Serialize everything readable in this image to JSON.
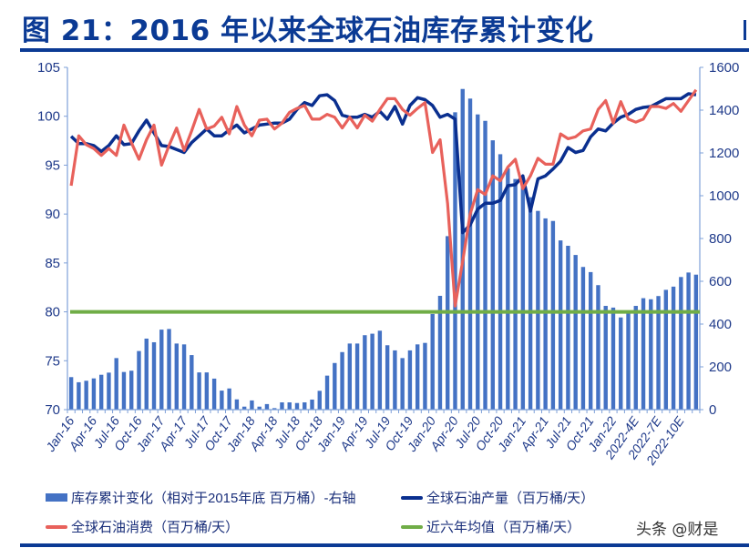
{
  "title": "图 21：2016 年以来全球石油库存累计变化",
  "watermark": "头条 @财是",
  "colors": {
    "bars": "#4472c4",
    "production": "#0a2f8f",
    "consumption": "#e8615b",
    "average": "#70ad47",
    "accent": "#0b3a94"
  },
  "chart_data": {
    "type": "bar+line",
    "title": "图 21：2016 年以来全球石油库存累计变化",
    "left_axis": {
      "ylim": [
        70,
        105
      ],
      "ticks": [
        70,
        75,
        80,
        85,
        90,
        95,
        100,
        105
      ]
    },
    "right_axis": {
      "ylim": [
        0,
        1600
      ],
      "ticks": [
        0,
        200,
        400,
        600,
        800,
        1000,
        1200,
        1400,
        1600
      ]
    },
    "x_tick_labels": [
      "Jan-16",
      "Apr-16",
      "Jul-16",
      "Oct-16",
      "Jan-17",
      "Apr-17",
      "Jul-17",
      "Oct-17",
      "Jan-18",
      "Apr-18",
      "Jul-18",
      "Oct-18",
      "Jan-19",
      "Apr-19",
      "Jul-19",
      "Oct-19",
      "Jan-20",
      "Apr-20",
      "Jul-20",
      "Oct-20",
      "Jan-21",
      "Apr-21",
      "Jul-21",
      "Oct-21",
      "Jan-22",
      "2022-4E",
      "2022-7E",
      "2022-10E"
    ],
    "grid": false,
    "legend_placement": "bottom",
    "series": [
      {
        "name": "库存累计变化（相对于2015年底 百万桶）-右轴",
        "type": "bar",
        "axis": "right",
        "values": [
          152,
          128,
          135,
          146,
          163,
          173,
          241,
          176,
          182,
          274,
          332,
          315,
          374,
          377,
          309,
          305,
          255,
          174,
          174,
          145,
          89,
          99,
          48,
          14,
          43,
          14,
          26,
          7,
          34,
          34,
          31,
          34,
          47,
          88,
          159,
          218,
          269,
          309,
          309,
          348,
          355,
          369,
          301,
          277,
          241,
          277,
          305,
          312,
          447,
          532,
          811,
          1390,
          1499,
          1454,
          1380,
          1350,
          1259,
          1194,
          1128,
          1078,
          1050,
          993,
          929,
          894,
          882,
          791,
          766,
          723,
          667,
          643,
          582,
          485,
          477,
          431,
          454,
          485,
          521,
          516,
          531,
          560,
          575,
          620,
          641,
          631
        ]
      },
      {
        "name": "全球石油产量（百万桶/天）",
        "type": "line",
        "axis": "left",
        "values": [
          97.95,
          97.2,
          97.2,
          97.0,
          96.4,
          97.0,
          98.0,
          97.1,
          97.2,
          98.5,
          99.6,
          98.3,
          97.0,
          96.9,
          96.6,
          96.3,
          97.3,
          98.0,
          98.7,
          98.0,
          98.0,
          98.6,
          99.1,
          98.3,
          98.7,
          99.1,
          99.2,
          99.3,
          99.3,
          99.7,
          100.7,
          101.4,
          101.1,
          102.1,
          102.2,
          101.6,
          100.1,
          99.9,
          99.9,
          100.2,
          99.9,
          100.5,
          99.7,
          101.0,
          99.2,
          101.1,
          101.9,
          101.7,
          101.1,
          99.9,
          100.2,
          99.7,
          88.1,
          88.9,
          90.5,
          91.1,
          91.1,
          91.4,
          92.9,
          93.0,
          93.9,
          90.3,
          93.6,
          93.9,
          94.6,
          95.4,
          96.8,
          96.3,
          96.5,
          97.9,
          98.7,
          98.5,
          99.3,
          99.9,
          100.2,
          100.7,
          100.9,
          101.0,
          101.4,
          101.8,
          101.8,
          101.8,
          102.3,
          102.2
        ]
      },
      {
        "name": "全球石油消费（百万桶/天）",
        "type": "line",
        "axis": "left",
        "values": [
          92.9,
          98.0,
          97.1,
          96.7,
          96.0,
          96.7,
          96.0,
          99.1,
          97.3,
          95.6,
          97.6,
          99.1,
          95.0,
          97.0,
          98.8,
          96.5,
          98.5,
          100.7,
          98.7,
          99.0,
          99.9,
          98.2,
          101.0,
          99.1,
          98.0,
          99.6,
          99.7,
          98.7,
          99.3,
          100.4,
          100.8,
          101.1,
          99.7,
          99.7,
          100.2,
          99.9,
          98.8,
          99.9,
          98.8,
          100.1,
          99.5,
          100.7,
          101.8,
          101.8,
          100.7,
          100.1,
          100.8,
          101.4,
          96.3,
          97.6,
          91.1,
          80.6,
          85.2,
          90.0,
          92.5,
          92.0,
          93.9,
          93.4,
          94.8,
          95.6,
          92.6,
          93.9,
          95.7,
          95.1,
          95.1,
          98.2,
          97.7,
          97.9,
          98.5,
          98.7,
          100.7,
          101.6,
          99.3,
          101.5,
          99.7,
          99.4,
          99.7,
          101.0,
          101.0,
          100.8,
          101.3,
          100.5,
          101.6,
          102.7
        ]
      },
      {
        "name": "近六年均值（百万桶/天）",
        "type": "line",
        "axis": "left",
        "value": 80
      }
    ]
  }
}
